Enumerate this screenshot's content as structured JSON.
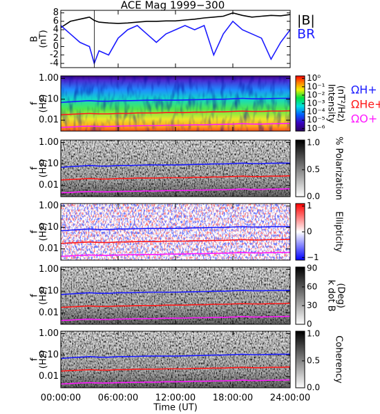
{
  "chart_data": [
    {
      "type": "line",
      "title": "ACE Mag 1999−300",
      "ylabel": [
        "B",
        "(nT)"
      ],
      "x": [
        0,
        1,
        2,
        3,
        3.5,
        4,
        5,
        6,
        7,
        8,
        9,
        10,
        11,
        12,
        13,
        14,
        15,
        16,
        17,
        18,
        19,
        20,
        21,
        22,
        23,
        24
      ],
      "xlim": [
        0,
        24
      ],
      "ylim": [
        -5,
        8.6
      ],
      "yticks": [
        -4,
        -2,
        0,
        2,
        4,
        6,
        8
      ],
      "series": [
        {
          "name": "|B|",
          "color": "#000000",
          "values": [
            4.5,
            6,
            6.5,
            7,
            6.2,
            5.8,
            5.6,
            5.5,
            5.6,
            5.8,
            6,
            6,
            6.1,
            6.1,
            6.3,
            6.5,
            6.8,
            7,
            7.2,
            8,
            7.4,
            7,
            7.2,
            7.4,
            7.3,
            7.6
          ]
        },
        {
          "name": "BR",
          "color": "#1a1aff",
          "values": [
            5,
            3,
            1,
            0,
            -4,
            -1,
            -2,
            2,
            4,
            5,
            3,
            1,
            3,
            4,
            5,
            4,
            5,
            -2,
            3,
            6,
            4,
            3,
            2,
            -3,
            1,
            4
          ]
        }
      ]
    },
    {
      "type": "spectrogram",
      "ylabel": [
        "f",
        "(Hz)"
      ],
      "log_y": true,
      "xlim": [
        0,
        24
      ],
      "ylim": [
        0.003,
        1.3
      ],
      "yticks": [
        {
          "value": 0.01,
          "label": "0.01"
        },
        {
          "value": 0.1,
          "label": "0.10"
        },
        {
          "value": 1,
          "label": "1.00"
        }
      ],
      "colormap": "rainbow",
      "colorbar": {
        "label": [
          "Intensity",
          "(nT²/Hz)"
        ],
        "log": true,
        "lim": [
          5e-07,
          2
        ],
        "ticks": [
          {
            "value": 1,
            "label": "10⁰"
          },
          {
            "value": 0.1,
            "label": "10⁻¹"
          },
          {
            "value": 0.01,
            "label": "10⁻²"
          },
          {
            "value": 0.001,
            "label": "10⁻³"
          },
          {
            "value": 0.0001,
            "label": "10⁻⁴"
          },
          {
            "value": 1e-05,
            "label": "10⁻⁵"
          },
          {
            "value": 1e-06,
            "label": "10⁻⁶"
          }
        ]
      },
      "x": [
        0,
        1,
        2,
        3,
        4,
        5,
        6,
        7,
        8,
        9,
        10,
        11,
        12,
        13,
        14,
        15,
        16,
        17,
        18,
        19,
        20,
        21,
        22,
        23,
        24
      ],
      "series": [
        {
          "name": "ΩH+",
          "color": "#1a1aff",
          "values": [
            0.07,
            0.075,
            0.08,
            0.085,
            0.08,
            0.08,
            0.085,
            0.085,
            0.087,
            0.09,
            0.09,
            0.09,
            0.09,
            0.092,
            0.095,
            0.097,
            0.1,
            0.1,
            0.105,
            0.11,
            0.105,
            0.105,
            0.108,
            0.11,
            0.11
          ]
        },
        {
          "name": "ΩHe+",
          "color": "#ff1a1a",
          "values": [
            0.018,
            0.019,
            0.02,
            0.021,
            0.02,
            0.02,
            0.021,
            0.021,
            0.022,
            0.022,
            0.022,
            0.023,
            0.023,
            0.023,
            0.024,
            0.024,
            0.025,
            0.025,
            0.026,
            0.027,
            0.026,
            0.026,
            0.027,
            0.027,
            0.028
          ]
        },
        {
          "name": "ΩO+",
          "color": "#ff1aff",
          "values": [
            0.0045,
            0.0047,
            0.005,
            0.0052,
            0.005,
            0.005,
            0.0052,
            0.0053,
            0.0054,
            0.0055,
            0.0055,
            0.0057,
            0.0057,
            0.0058,
            0.006,
            0.006,
            0.0062,
            0.0063,
            0.0065,
            0.0068,
            0.0065,
            0.0065,
            0.0067,
            0.0068,
            0.007
          ]
        }
      ]
    },
    {
      "type": "spectrogram",
      "ylabel": [
        "f",
        "(Hz)"
      ],
      "log_y": true,
      "xlim": [
        0,
        24
      ],
      "ylim": [
        0.003,
        1.3
      ],
      "yticks": [
        {
          "value": 0.01,
          "label": "0.01"
        },
        {
          "value": 0.1,
          "label": "0.10"
        },
        {
          "value": 1,
          "label": "1.00"
        }
      ],
      "colormap": "gray",
      "colorbar": {
        "label": [
          "% Polarization"
        ],
        "lim": [
          0,
          1.05
        ],
        "ticks": [
          {
            "value": 0,
            "label": "0.0"
          },
          {
            "value": 0.5,
            "label": "0.5"
          },
          {
            "value": 1,
            "label": "1.0"
          }
        ]
      }
    },
    {
      "type": "spectrogram",
      "ylabel": [
        "f",
        "(Hz)"
      ],
      "log_y": true,
      "xlim": [
        0,
        24
      ],
      "ylim": [
        0.003,
        1.3
      ],
      "yticks": [
        {
          "value": 0.01,
          "label": "0.01"
        },
        {
          "value": 0.1,
          "label": "0.10"
        },
        {
          "value": 1,
          "label": "1.00"
        }
      ],
      "colormap": "redblue",
      "colorbar": {
        "label": [
          "Ellipticity"
        ],
        "lim": [
          -1.1,
          1.1
        ],
        "ticks": [
          {
            "value": -1,
            "label": "−1"
          },
          0,
          1
        ]
      }
    },
    {
      "type": "spectrogram",
      "ylabel": [
        "f",
        "(Hz)"
      ],
      "log_y": true,
      "xlim": [
        0,
        24
      ],
      "ylim": [
        0.003,
        1.3
      ],
      "yticks": [
        {
          "value": 0.01,
          "label": "0.01"
        },
        {
          "value": 0.1,
          "label": "0.10"
        },
        {
          "value": 1,
          "label": "1.00"
        }
      ],
      "colormap": "gray",
      "colorbar": {
        "label": [
          "k dot B",
          "(Deg)"
        ],
        "lim": [
          0,
          92
        ],
        "ticks": [
          0,
          30,
          60,
          90
        ]
      }
    },
    {
      "type": "spectrogram",
      "ylabel": [
        "f",
        "(Hz)"
      ],
      "log_y": true,
      "xlim": [
        0,
        24
      ],
      "ylim": [
        0.003,
        1.3
      ],
      "yticks": [
        {
          "value": 0.01,
          "label": "0.01"
        },
        {
          "value": 0.1,
          "label": "0.10"
        },
        {
          "value": 1,
          "label": "1.00"
        }
      ],
      "colormap": "gray",
      "colorbar": {
        "label": [
          "Coherency"
        ],
        "lim": [
          0,
          1.05
        ],
        "ticks": [
          {
            "value": 0,
            "label": "0.0"
          },
          {
            "value": 0.5,
            "label": "0.5"
          },
          {
            "value": 1,
            "label": "1.0"
          }
        ]
      },
      "xlabel": "Time (UT)",
      "xticks": [
        {
          "value": 0,
          "label": "00:00:00"
        },
        {
          "value": 6,
          "label": "06:00:00"
        },
        {
          "value": 12,
          "label": "12:00:00"
        },
        {
          "value": 18,
          "label": "18:00:00"
        },
        {
          "value": 24,
          "label": "24:00:00"
        }
      ]
    }
  ]
}
